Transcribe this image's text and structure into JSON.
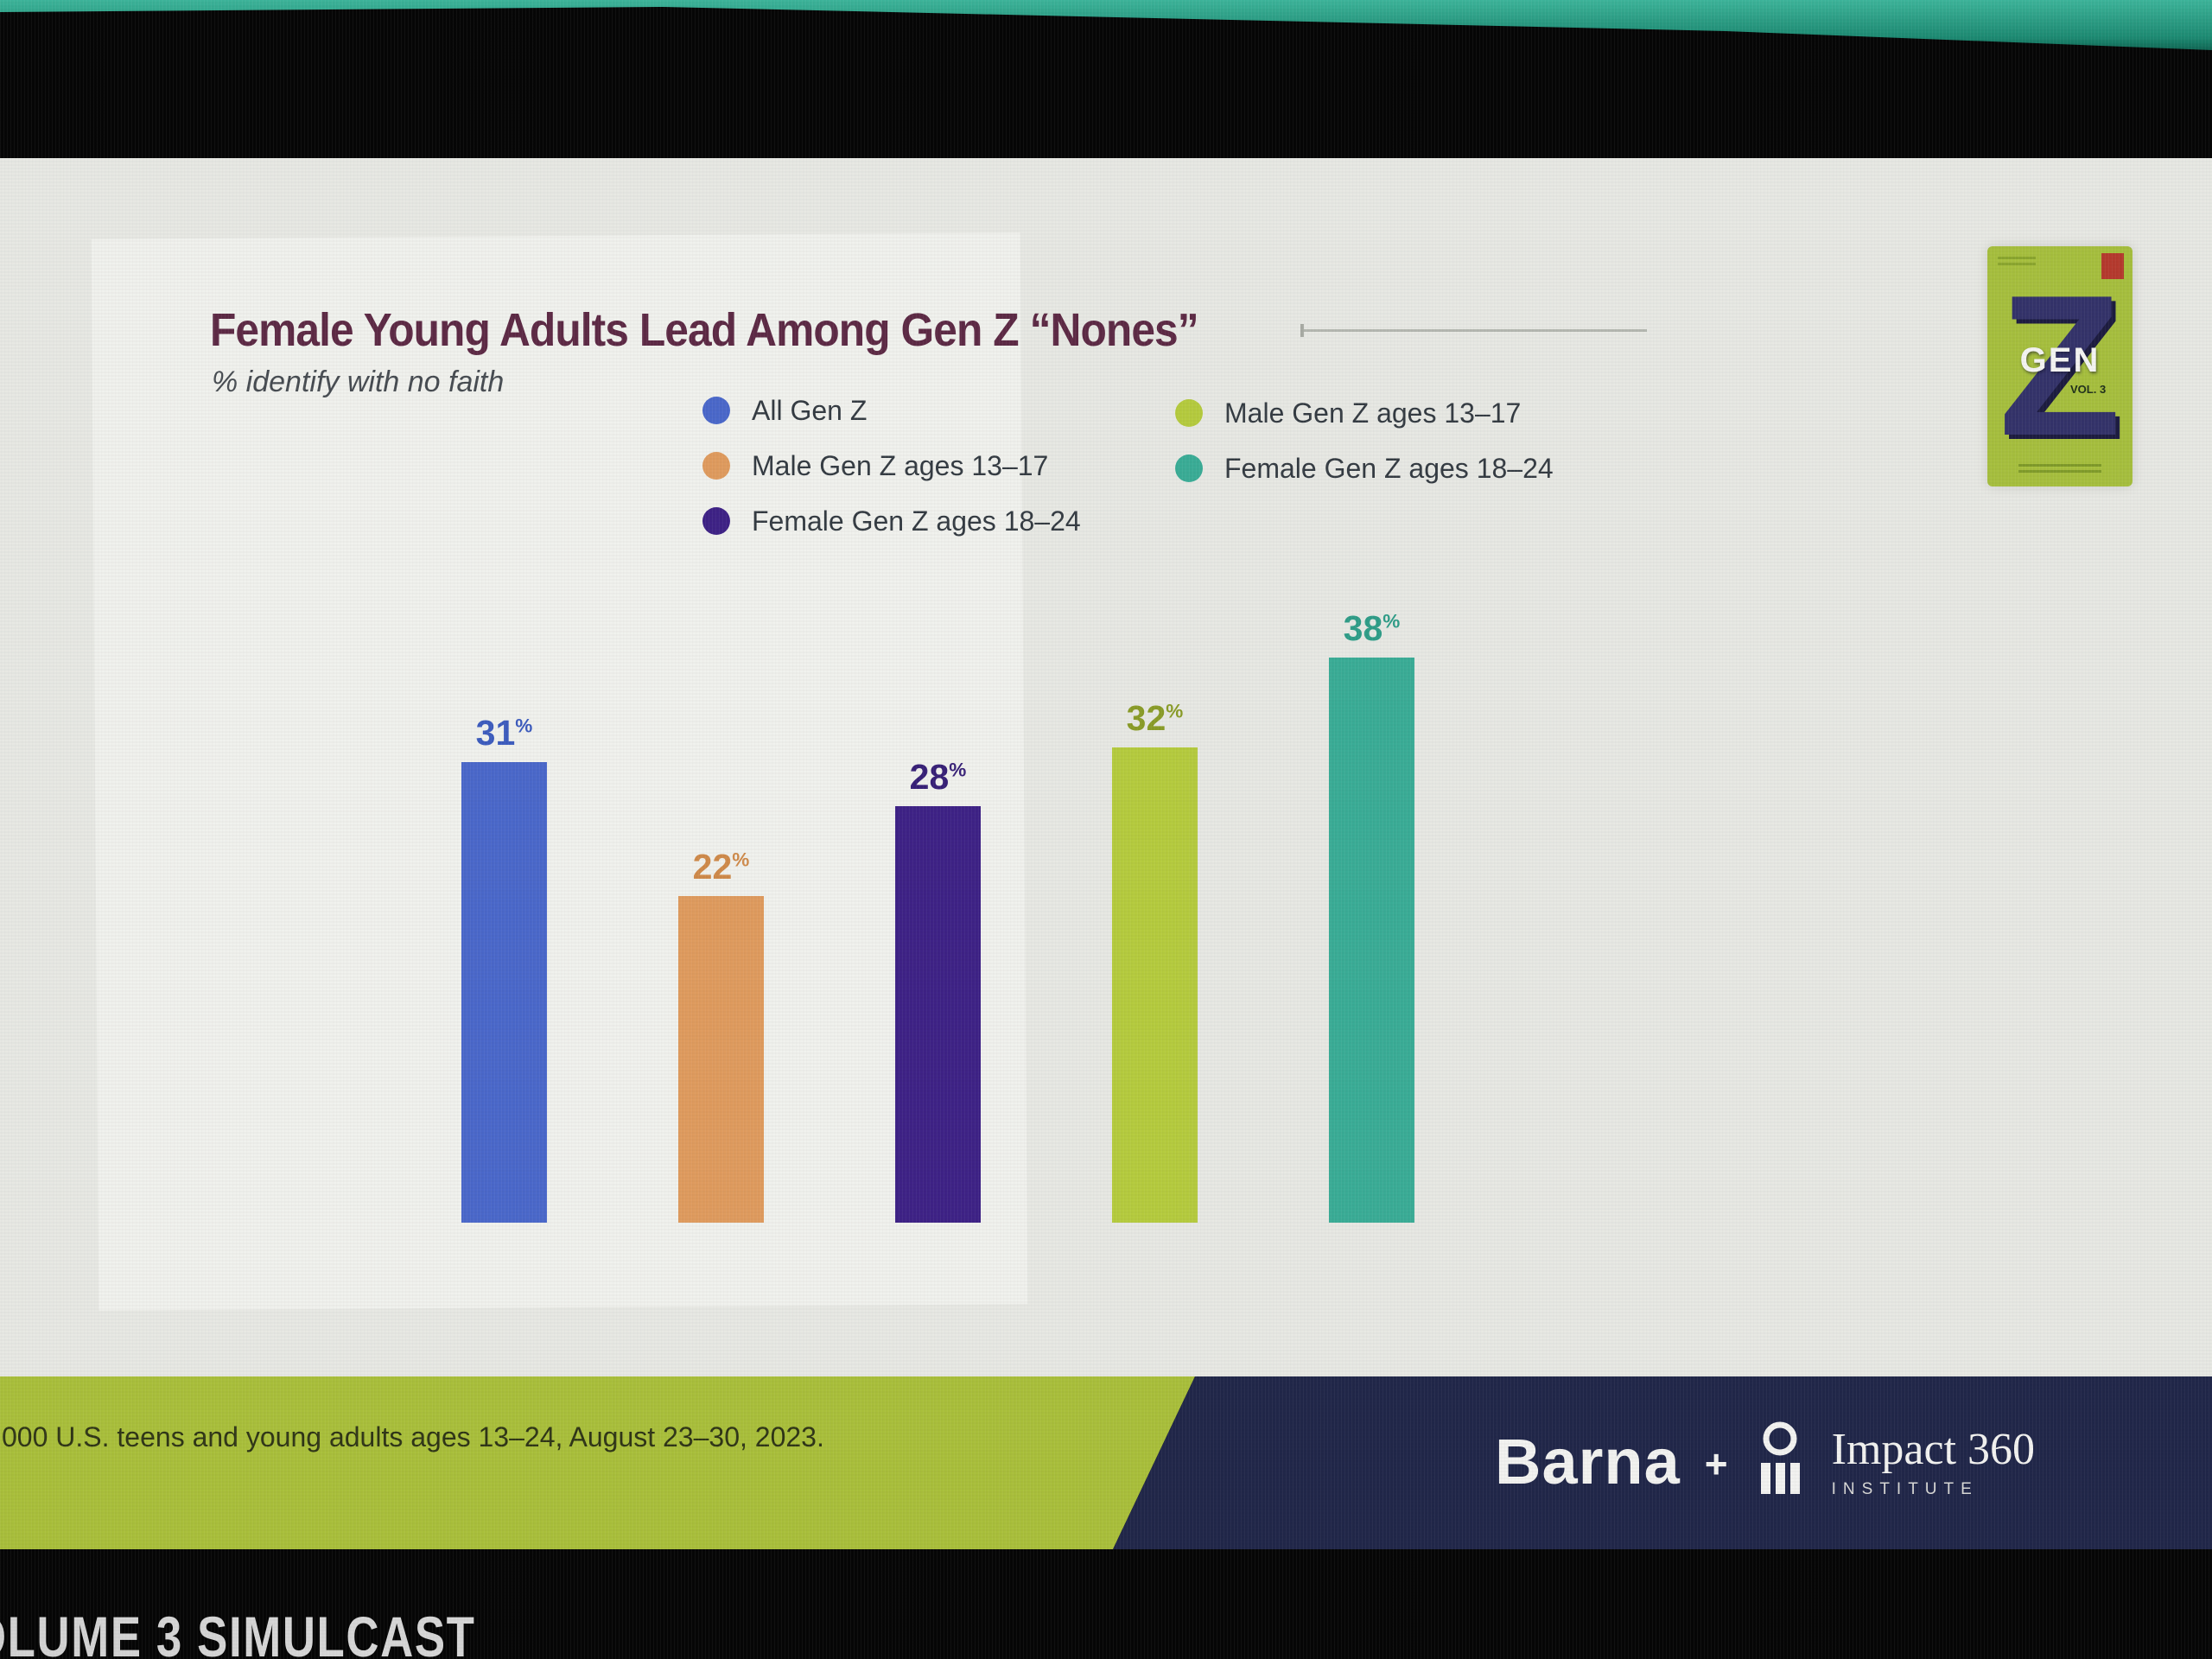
{
  "slide": {
    "title": "Female Young Adults Lead Among Gen Z “Nones”",
    "subtitle": "% identify with no faith"
  },
  "chart_data": {
    "type": "bar",
    "title": "Female Young Adults Lead Among Gen Z “Nones”",
    "subtitle": "% identify with no faith",
    "unit": "%",
    "categories": [
      "All Gen Z",
      "Male Gen Z ages 13–17",
      "Female Gen Z ages 18–24",
      "Male Gen Z ages 13–17",
      "Female Gen Z ages 18–24"
    ],
    "values": [
      31,
      22,
      28,
      32,
      38
    ],
    "colors": [
      "#4a68ca",
      "#df9b5e",
      "#3e2286",
      "#b5cb3e",
      "#3aac96"
    ],
    "label_colors": [
      "#3d5cbe",
      "#cf8a4a",
      "#372077",
      "#8a9c28",
      "#2f9d88"
    ],
    "ylim": [
      0,
      45
    ],
    "grid": false,
    "value_labels": true,
    "legend": {
      "position": "top",
      "columns": [
        [
          {
            "label": "All Gen Z",
            "color": "#4a68ca"
          },
          {
            "label": "Male Gen Z ages 13–17",
            "color": "#df9b5e"
          },
          {
            "label": "Female Gen Z ages 18–24",
            "color": "#3e2286"
          }
        ],
        [
          {
            "label": "Male Gen Z ages 13–17",
            "color": "#b5cb3e"
          },
          {
            "label": "Female Gen Z ages 18–24",
            "color": "#3aac96"
          }
        ]
      ]
    }
  },
  "genz_cover": {
    "z": "Z",
    "gen": "GEN",
    "vol": "VOL. 3"
  },
  "source_bar": {
    "text": "000 U.S. teens and young adults ages 13–24, August 23–30, 2023."
  },
  "brand_bar": {
    "barna": "Barna",
    "plus": "+",
    "impact": "Impact 360",
    "institute": "INSTITUTE"
  },
  "ticker": {
    "text": "OLUME 3 SIMULCAST"
  },
  "colors": {
    "teal_strip": "#2aa18a",
    "slide_bg": "#e7e8e3",
    "banner_green": "#a9bf3b",
    "banner_navy": "#212749",
    "title": "#5d2a45"
  }
}
